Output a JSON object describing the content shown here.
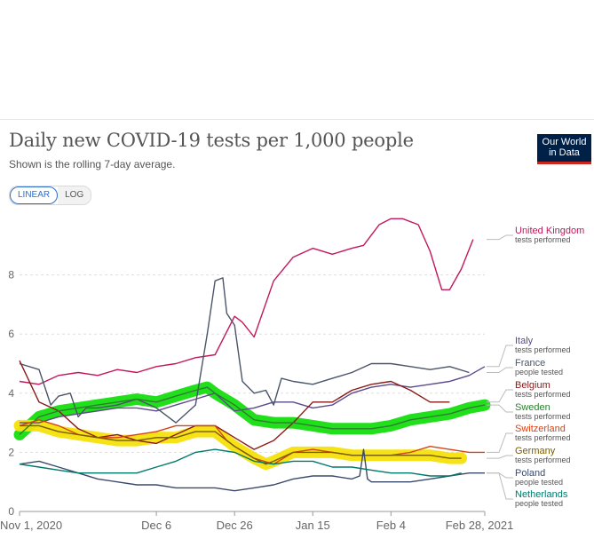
{
  "header": {
    "title": "Daily new COVID-19 tests per 1,000 people",
    "subtitle": "Shown is the rolling 7-day average.",
    "logo_line1": "Our World",
    "logo_line2": "in Data"
  },
  "toggle": {
    "linear_label": "LINEAR",
    "log_label": "LOG",
    "selected": "LINEAR"
  },
  "chart_data": {
    "type": "line",
    "title": "Daily new COVID-19 tests per 1,000 people",
    "subtitle": "Shown is the rolling 7-day average.",
    "xlabel": "",
    "ylabel": "",
    "ylim": [
      0,
      10
    ],
    "xlim": [
      0,
      119
    ],
    "y_ticks": [
      0,
      2,
      4,
      6,
      8
    ],
    "x_ticks": [
      {
        "value": 0,
        "label": "Nov 1, 2020"
      },
      {
        "value": 35,
        "label": "Dec 6"
      },
      {
        "value": 55,
        "label": "Dec 26"
      },
      {
        "value": 75,
        "label": "Jan 15"
      },
      {
        "value": 95,
        "label": "Feb 4"
      },
      {
        "value": 119,
        "label": "Feb 28, 2021"
      }
    ],
    "grid": true,
    "series": [
      {
        "name": "United Kingdom",
        "metric": "tests performed",
        "color": "#c2185b",
        "x": [
          0,
          5,
          10,
          15,
          20,
          25,
          30,
          35,
          40,
          45,
          50,
          55,
          57,
          60,
          65,
          70,
          75,
          80,
          85,
          88,
          92,
          95,
          98,
          102,
          105,
          108,
          110,
          113,
          116
        ],
        "values": [
          4.4,
          4.3,
          4.6,
          4.7,
          4.6,
          4.8,
          4.7,
          4.9,
          5.0,
          5.2,
          5.3,
          6.6,
          6.4,
          5.9,
          7.8,
          8.6,
          8.9,
          8.7,
          8.9,
          9.0,
          9.7,
          9.9,
          9.9,
          9.7,
          8.8,
          7.5,
          7.5,
          8.2,
          9.2
        ]
      },
      {
        "name": "Italy",
        "metric": "tests performed",
        "color": "#5c4a8a",
        "x": [
          0,
          5,
          10,
          15,
          20,
          25,
          30,
          35,
          40,
          45,
          50,
          55,
          60,
          65,
          70,
          75,
          80,
          85,
          90,
          95,
          100,
          105,
          110,
          115,
          119
        ],
        "values": [
          3.0,
          3.0,
          3.2,
          3.3,
          3.4,
          3.5,
          3.5,
          3.4,
          3.6,
          3.8,
          4.0,
          3.4,
          3.5,
          3.7,
          3.7,
          3.5,
          3.6,
          4.0,
          4.2,
          4.3,
          4.2,
          4.3,
          4.4,
          4.6,
          4.9
        ]
      },
      {
        "name": "France",
        "metric": "people tested",
        "color": "#4a5568",
        "x": [
          0,
          5,
          8,
          10,
          13,
          15,
          17,
          20,
          25,
          30,
          35,
          40,
          45,
          48,
          50,
          52,
          53,
          55,
          57,
          60,
          63,
          65,
          67,
          70,
          75,
          80,
          85,
          90,
          95,
          100,
          105,
          110,
          115
        ],
        "values": [
          5.0,
          4.8,
          3.6,
          3.9,
          4.0,
          3.2,
          3.5,
          3.5,
          3.6,
          3.8,
          3.5,
          3.0,
          3.6,
          6.0,
          7.8,
          7.9,
          6.7,
          6.3,
          4.4,
          4.0,
          4.1,
          3.6,
          4.5,
          4.4,
          4.3,
          4.5,
          4.7,
          5.0,
          5.0,
          4.9,
          4.8,
          4.9,
          4.7
        ]
      },
      {
        "name": "Belgium",
        "metric": "tests performed",
        "color": "#8b1a1a",
        "x": [
          0,
          5,
          10,
          15,
          20,
          25,
          30,
          35,
          40,
          45,
          50,
          55,
          60,
          65,
          70,
          75,
          80,
          85,
          90,
          95,
          100,
          105,
          110
        ],
        "values": [
          5.1,
          3.7,
          3.4,
          2.8,
          2.5,
          2.6,
          2.4,
          2.3,
          2.6,
          2.9,
          2.9,
          2.5,
          2.1,
          2.4,
          3.0,
          3.7,
          3.7,
          4.1,
          4.3,
          4.4,
          4.1,
          3.7,
          3.7
        ]
      },
      {
        "name": "Sweden",
        "metric": "tests performed",
        "color": "#2e7d32",
        "highlight": "#16dd10",
        "x": [
          0,
          5,
          10,
          15,
          20,
          25,
          30,
          35,
          40,
          45,
          48,
          50,
          55,
          60,
          65,
          70,
          75,
          80,
          85,
          90,
          95,
          100,
          105,
          110,
          115,
          119
        ],
        "values": [
          2.6,
          3.2,
          3.4,
          3.5,
          3.6,
          3.7,
          3.8,
          3.7,
          3.9,
          4.1,
          4.2,
          4.0,
          3.6,
          3.1,
          3.0,
          3.0,
          2.9,
          2.8,
          2.8,
          2.8,
          2.9,
          3.1,
          3.2,
          3.3,
          3.5,
          3.6
        ]
      },
      {
        "name": "Switzerland",
        "metric": "tests performed",
        "color": "#d84315",
        "x": [
          0,
          5,
          10,
          15,
          20,
          25,
          30,
          35,
          40,
          45,
          50,
          53,
          55,
          60,
          65,
          70,
          75,
          80,
          85,
          90,
          95,
          100,
          105,
          110,
          115,
          119
        ],
        "values": [
          2.9,
          3.1,
          2.9,
          2.6,
          2.5,
          2.5,
          2.6,
          2.7,
          2.9,
          2.9,
          2.9,
          2.4,
          2.2,
          1.8,
          1.6,
          2.0,
          2.1,
          2.0,
          1.9,
          1.9,
          1.9,
          2.0,
          2.2,
          2.1,
          2.0,
          2.0
        ]
      },
      {
        "name": "Germany",
        "metric": "tests performed",
        "color": "#7a5c00",
        "highlight": "#f5e10b",
        "x": [
          0,
          5,
          10,
          15,
          20,
          25,
          30,
          35,
          40,
          45,
          50,
          55,
          60,
          63,
          65,
          70,
          75,
          80,
          85,
          90,
          95,
          100,
          105,
          110,
          113
        ],
        "values": [
          2.9,
          2.9,
          2.7,
          2.6,
          2.5,
          2.4,
          2.4,
          2.5,
          2.5,
          2.7,
          2.7,
          2.2,
          1.8,
          1.6,
          1.7,
          2.0,
          2.0,
          2.0,
          1.9,
          1.9,
          1.9,
          1.9,
          1.9,
          1.8,
          1.8
        ]
      },
      {
        "name": "Poland",
        "metric": "people tested",
        "color": "#3b4a6b",
        "x": [
          0,
          5,
          10,
          15,
          20,
          25,
          30,
          35,
          40,
          45,
          50,
          55,
          60,
          65,
          70,
          75,
          80,
          85,
          87,
          88,
          89,
          90,
          95,
          100,
          105,
          110,
          115,
          119
        ],
        "values": [
          1.6,
          1.7,
          1.5,
          1.3,
          1.1,
          1.0,
          0.9,
          0.9,
          0.8,
          0.8,
          0.8,
          0.7,
          0.8,
          0.9,
          1.1,
          1.2,
          1.2,
          1.1,
          1.2,
          2.1,
          1.1,
          1.0,
          1.0,
          1.0,
          1.1,
          1.2,
          1.3,
          1.3
        ]
      },
      {
        "name": "Netherlands",
        "metric": "people tested",
        "color": "#00796b",
        "x": [
          0,
          5,
          10,
          15,
          20,
          25,
          30,
          35,
          40,
          45,
          50,
          55,
          60,
          65,
          70,
          75,
          80,
          85,
          90,
          95,
          100,
          105,
          110,
          113
        ],
        "values": [
          1.6,
          1.5,
          1.4,
          1.3,
          1.3,
          1.3,
          1.3,
          1.5,
          1.7,
          2.0,
          2.1,
          2.0,
          1.7,
          1.6,
          1.7,
          1.7,
          1.5,
          1.5,
          1.4,
          1.3,
          1.3,
          1.2,
          1.2,
          1.3
        ]
      }
    ]
  }
}
